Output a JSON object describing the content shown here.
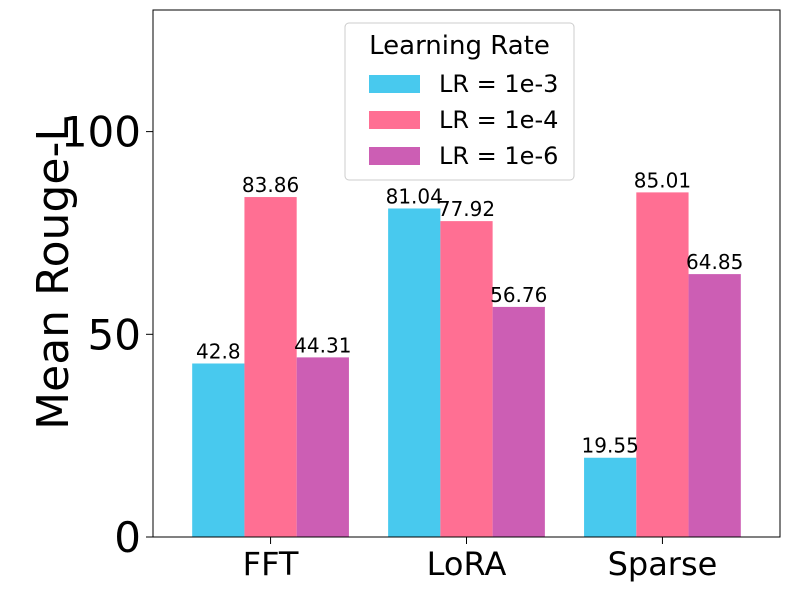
{
  "chart_data": {
    "type": "bar",
    "title": "",
    "xlabel": "",
    "ylabel": "Mean Rouge-L",
    "categories": [
      "FFT",
      "LoRA",
      "Sparse"
    ],
    "ylim": [
      0,
      130
    ],
    "yticks": [
      0,
      50,
      100
    ],
    "grid": false,
    "legend": {
      "title": "Learning Rate",
      "placement": "top-center"
    },
    "series": [
      {
        "name": "LR = 1e-3",
        "color": "#48c9ee",
        "values": [
          42.8,
          81.04,
          19.55
        ],
        "labels": [
          "42.8",
          "81.04",
          "19.55"
        ]
      },
      {
        "name": "LR = 1e-4",
        "color": "#ff6f93",
        "values": [
          83.86,
          77.92,
          85.01
        ],
        "labels": [
          "83.86",
          "77.92",
          "85.01"
        ]
      },
      {
        "name": "LR = 1e-6",
        "color": "#cc5eb4",
        "values": [
          44.31,
          56.76,
          64.85
        ],
        "labels": [
          "44.31",
          "56.76",
          "64.85"
        ]
      }
    ]
  }
}
